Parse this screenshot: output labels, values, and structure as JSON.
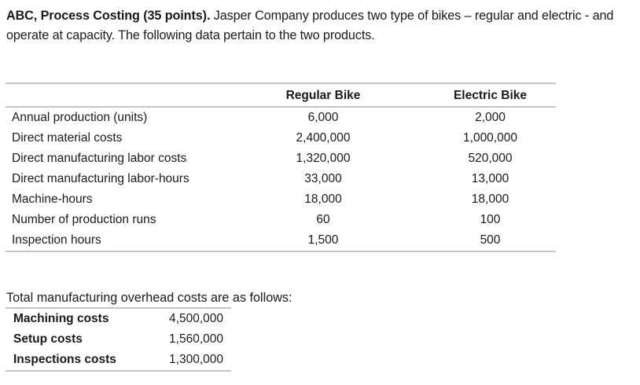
{
  "intro": {
    "bold_lead": "ABC, Process Costing (35 points).",
    "text": " Jasper Company produces two type of bikes – regular and electric - and operate at capacity. The following data pertain to the two products."
  },
  "product_table": {
    "headers": [
      "",
      "Regular Bike",
      "Electric Bike"
    ],
    "rows": [
      {
        "label": "Annual production (units)",
        "regular": "6,000",
        "electric": "2,000"
      },
      {
        "label": "Direct material costs",
        "regular": "2,400,000",
        "electric": "1,000,000"
      },
      {
        "label": "Direct manufacturing labor costs",
        "regular": "1,320,000",
        "electric": "520,000"
      },
      {
        "label": "Direct manufacturing labor-hours",
        "regular": "33,000",
        "electric": "13,000"
      },
      {
        "label": "Machine-hours",
        "regular": "18,000",
        "electric": "18,000"
      },
      {
        "label": "Number of production runs",
        "regular": "60",
        "electric": "100"
      },
      {
        "label": "Inspection hours",
        "regular": "1,500",
        "electric": "500"
      }
    ]
  },
  "overhead": {
    "title": "Total manufacturing overhead costs are as follows:",
    "rows": [
      {
        "label": "Machining costs",
        "value": "4,500,000"
      },
      {
        "label": "Setup costs",
        "value": "1,560,000"
      },
      {
        "label": "Inspections costs",
        "value": "1,300,000"
      }
    ]
  }
}
